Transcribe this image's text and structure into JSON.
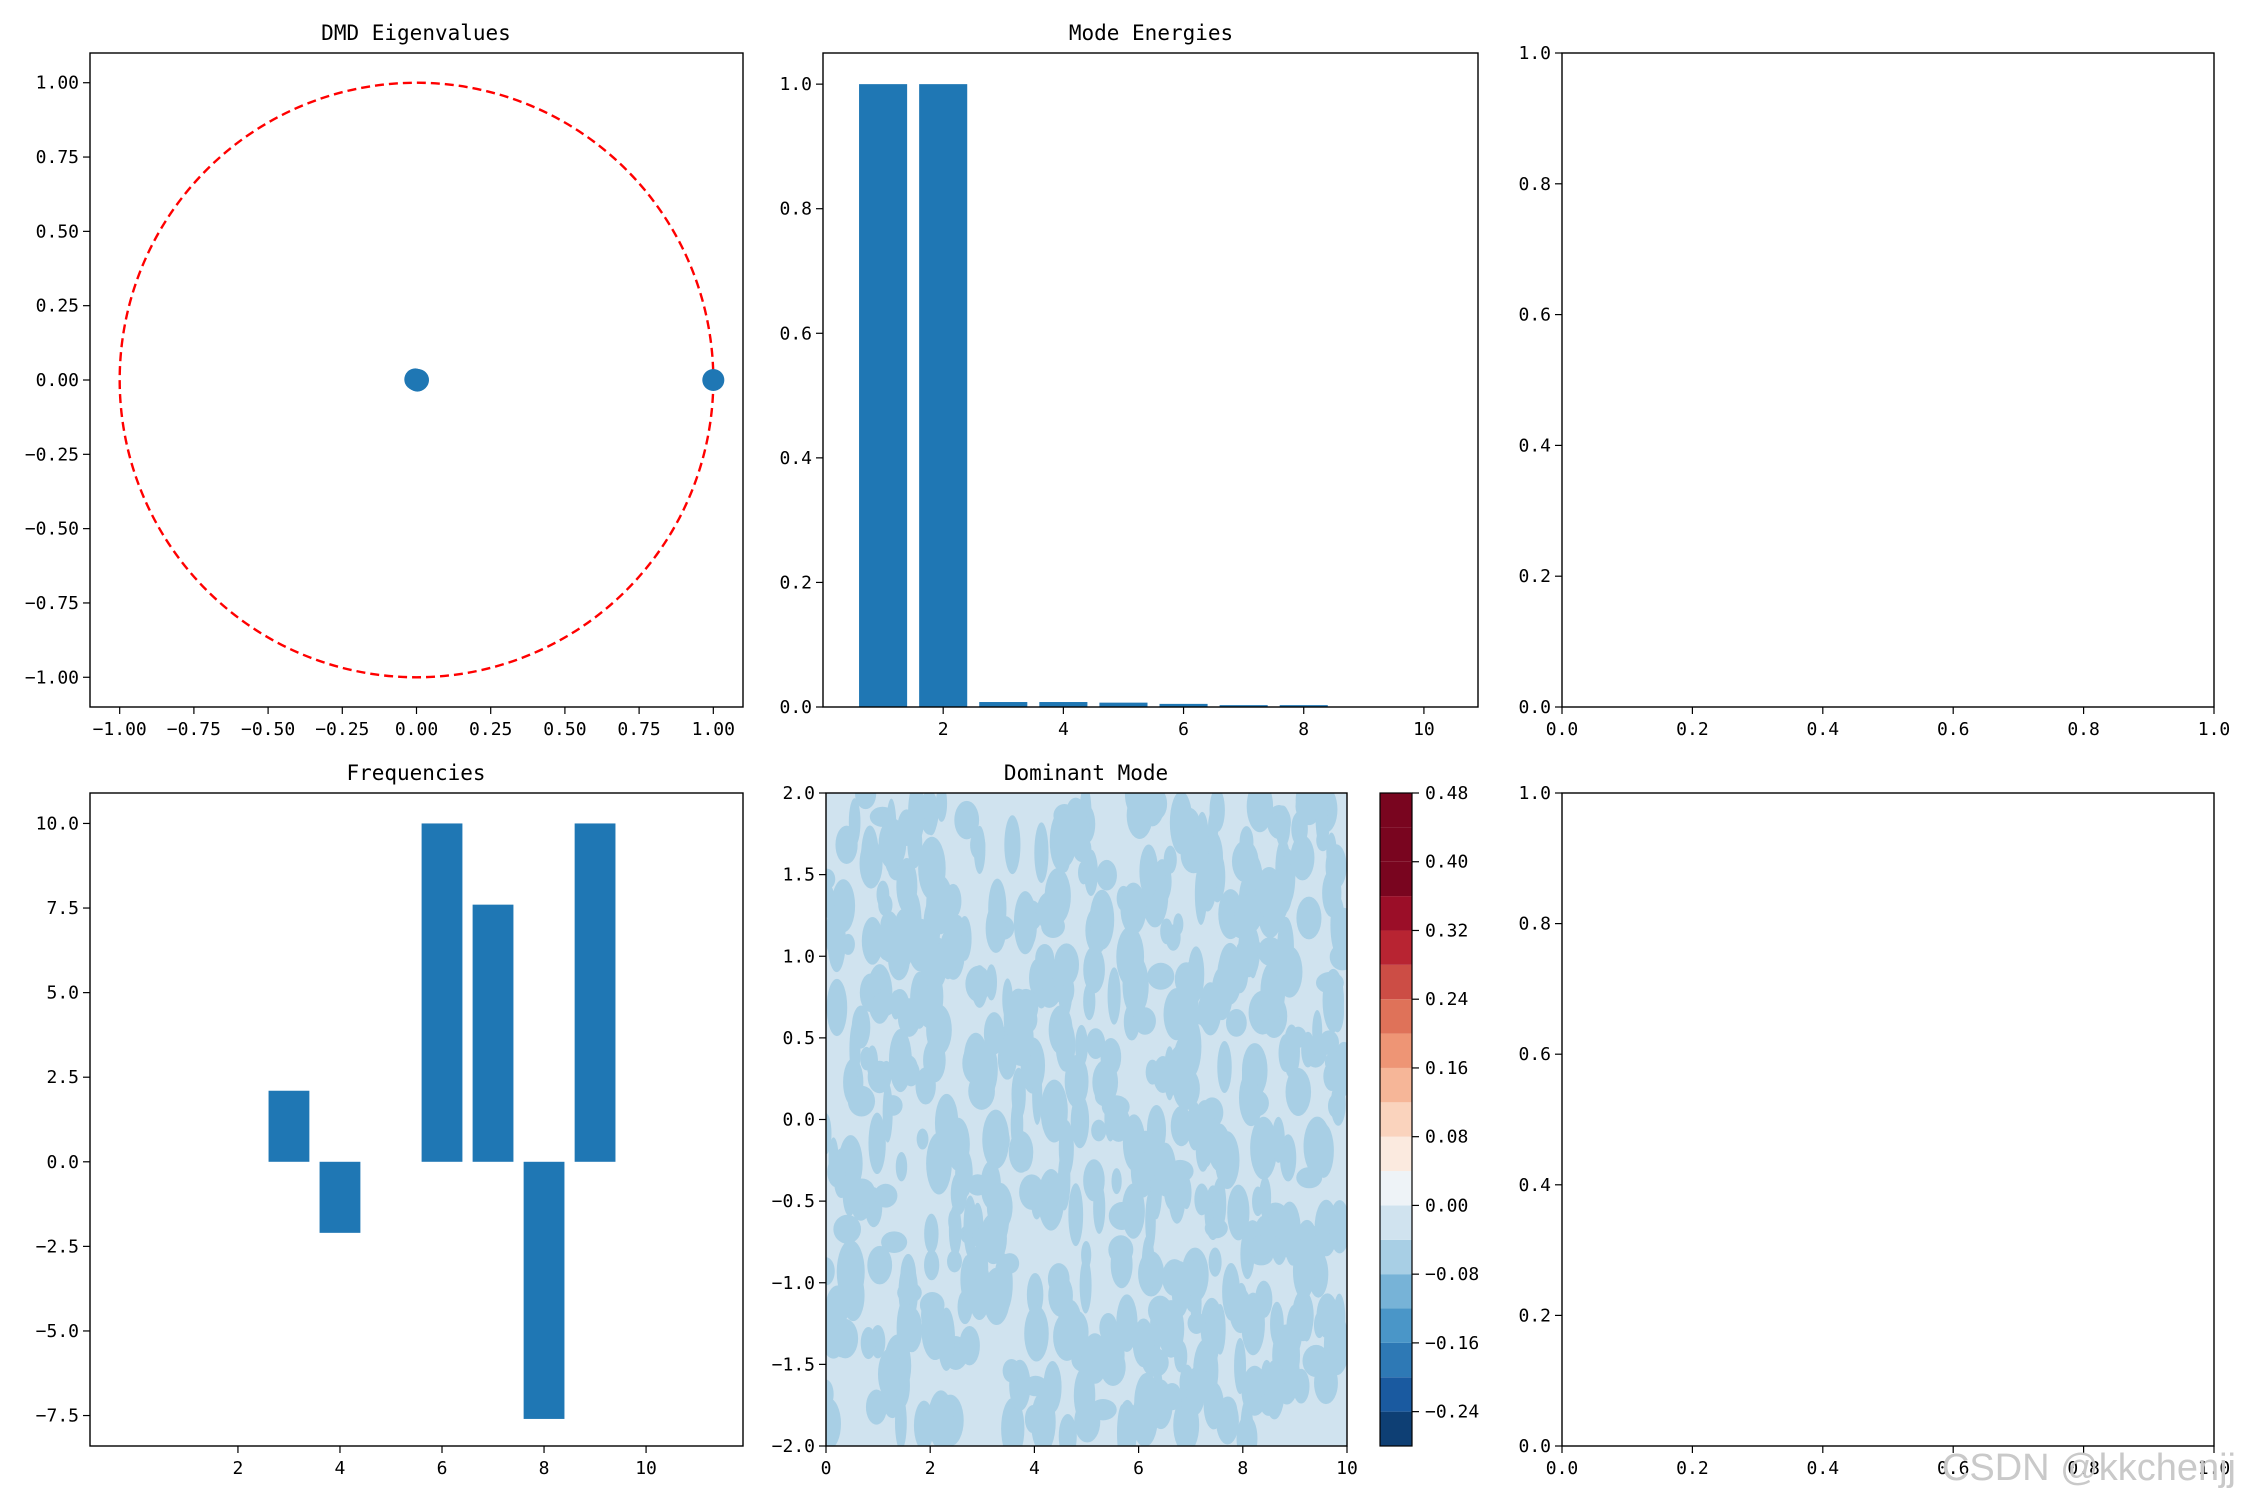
{
  "watermark": "CSDN @kkchenjj",
  "colors": {
    "series": "#1f77b4",
    "circle": "#ff0000",
    "axis": "#000000"
  },
  "chart_data": [
    {
      "id": "eigenvalues",
      "type": "scatter",
      "title": "DMD Eigenvalues",
      "xlabel": "",
      "ylabel": "",
      "xlim": [
        -1.1,
        1.1
      ],
      "ylim": [
        -1.1,
        1.1
      ],
      "xticks": [
        -1.0,
        -0.75,
        -0.5,
        -0.25,
        0.0,
        0.25,
        0.5,
        0.75,
        1.0
      ],
      "yticks": [
        -1.0,
        -0.75,
        -0.5,
        -0.25,
        0.0,
        0.25,
        0.5,
        0.75,
        1.0
      ],
      "xtick_labels": [
        "−1.00",
        "−0.75",
        "−0.50",
        "−0.25",
        "0.00",
        "0.25",
        "0.50",
        "0.75",
        "1.00"
      ],
      "ytick_labels": [
        "−1.00",
        "−0.75",
        "−0.50",
        "−0.25",
        "0.00",
        "0.25",
        "0.50",
        "0.75",
        "1.00"
      ],
      "points": [
        {
          "x": 0.0,
          "y": 0.0
        },
        {
          "x": 0.005,
          "y": 0.0
        },
        {
          "x": -0.004,
          "y": 0.002
        },
        {
          "x": 0.003,
          "y": -0.002
        },
        {
          "x": 1.0,
          "y": 0.0
        }
      ],
      "unit_circle": {
        "r": 1.0,
        "style": "dashed",
        "color": "#ff0000"
      },
      "grid": false
    },
    {
      "id": "energies",
      "type": "bar",
      "title": "Mode Energies",
      "xlabel": "",
      "ylabel": "",
      "x": [
        1,
        2,
        3,
        4,
        5,
        6,
        7,
        8,
        9,
        10
      ],
      "values": [
        1.0,
        1.0,
        0.008,
        0.008,
        0.007,
        0.005,
        0.003,
        0.003,
        0.0,
        0.0
      ],
      "xlim": [
        0.0,
        10.9
      ],
      "ylim": [
        0.0,
        1.05
      ],
      "xticks": [
        2,
        4,
        6,
        8,
        10
      ],
      "yticks": [
        0.0,
        0.2,
        0.4,
        0.6,
        0.8,
        1.0
      ],
      "xtick_labels": [
        "2",
        "4",
        "6",
        "8",
        "10"
      ],
      "ytick_labels": [
        "0.0",
        "0.2",
        "0.4",
        "0.6",
        "0.8",
        "1.0"
      ],
      "bar_width": 0.8,
      "grid": false
    },
    {
      "id": "empty-top",
      "type": "scatter",
      "title": "",
      "xlim": [
        0.0,
        1.0
      ],
      "ylim": [
        0.0,
        1.0
      ],
      "xticks": [
        0.0,
        0.2,
        0.4,
        0.6,
        0.8,
        1.0
      ],
      "yticks": [
        0.0,
        0.2,
        0.4,
        0.6,
        0.8,
        1.0
      ],
      "xtick_labels": [
        "0.0",
        "0.2",
        "0.4",
        "0.6",
        "0.8",
        "1.0"
      ],
      "ytick_labels": [
        "0.0",
        "0.2",
        "0.4",
        "0.6",
        "0.8",
        "1.0"
      ],
      "points": []
    },
    {
      "id": "frequencies",
      "type": "bar",
      "title": "Frequencies",
      "xlabel": "",
      "ylabel": "",
      "x": [
        1,
        2,
        3,
        4,
        5,
        6,
        7,
        8,
        9,
        10
      ],
      "values": [
        0.0,
        0.0,
        2.1,
        -2.1,
        0.0,
        10.0,
        7.6,
        -7.6,
        10.0,
        0.0
      ],
      "xlim": [
        -0.9,
        11.9
      ],
      "ylim": [
        -8.4,
        10.9
      ],
      "xticks": [
        2,
        4,
        6,
        8,
        10
      ],
      "yticks": [
        -7.5,
        -5.0,
        -2.5,
        0.0,
        2.5,
        5.0,
        7.5,
        10.0
      ],
      "xtick_labels": [
        "2",
        "4",
        "6",
        "8",
        "10"
      ],
      "ytick_labels": [
        "−7.5",
        "−5.0",
        "−2.5",
        "0.0",
        "2.5",
        "5.0",
        "7.5",
        "10.0"
      ],
      "bar_width": 0.8,
      "grid": false
    },
    {
      "id": "dominant-mode",
      "type": "heatmap",
      "title": "Dominant Mode",
      "xlabel": "",
      "ylabel": "",
      "xlim": [
        0,
        10
      ],
      "ylim": [
        -2.0,
        2.0
      ],
      "xticks": [
        0,
        2,
        4,
        6,
        8,
        10
      ],
      "yticks": [
        -2.0,
        -1.5,
        -1.0,
        -0.5,
        0.0,
        0.5,
        1.0,
        1.5,
        2.0
      ],
      "xtick_labels": [
        "0",
        "2",
        "4",
        "6",
        "8",
        "10"
      ],
      "ytick_labels": [
        "−2.0",
        "−1.5",
        "−1.0",
        "−0.5",
        "0.0",
        "0.5",
        "1.0",
        "1.5",
        "2.0"
      ],
      "colormap": "RdBu_r",
      "levels": [
        -0.28,
        -0.24,
        -0.2,
        -0.16,
        -0.12,
        -0.08,
        -0.04,
        0.0,
        0.04,
        0.08,
        0.12,
        0.16,
        0.2,
        0.24,
        0.28,
        0.32,
        0.36,
        0.4,
        0.44,
        0.48
      ],
      "level_colors": [
        "#0e3f74",
        "#1a5aa0",
        "#2e79b5",
        "#4a96c8",
        "#77b3d7",
        "#a8cfe5",
        "#d0e3ef",
        "#eef3f7",
        "#fbeadf",
        "#fad3bd",
        "#f6b698",
        "#ee9575",
        "#df7259",
        "#cc4d45",
        "#b82432",
        "#9b0e28",
        "#79051f",
        "#79051f",
        "#79051f"
      ],
      "dominant_range": [
        -0.08,
        0.0
      ],
      "colorbar_ticks": [
        -0.24,
        -0.16,
        -0.08,
        0.0,
        0.08,
        0.16,
        0.24,
        0.32,
        0.4,
        0.48
      ],
      "colorbar_tick_labels": [
        "−0.24",
        "−0.16",
        "−0.08",
        "0.00",
        "0.08",
        "0.16",
        "0.24",
        "0.32",
        "0.40",
        "0.48"
      ]
    },
    {
      "id": "empty-bottom",
      "type": "scatter",
      "title": "",
      "xlim": [
        0.0,
        1.0
      ],
      "ylim": [
        0.0,
        1.0
      ],
      "xticks": [
        0.0,
        0.2,
        0.4,
        0.6,
        0.8,
        1.0
      ],
      "yticks": [
        0.0,
        0.2,
        0.4,
        0.6,
        0.8,
        1.0
      ],
      "xtick_labels": [
        "0.0",
        "0.2",
        "0.4",
        "0.6",
        "0.8",
        "1.0"
      ],
      "ytick_labels": [
        "0.0",
        "0.2",
        "0.4",
        "0.6",
        "0.8",
        "1.0"
      ],
      "points": []
    }
  ]
}
